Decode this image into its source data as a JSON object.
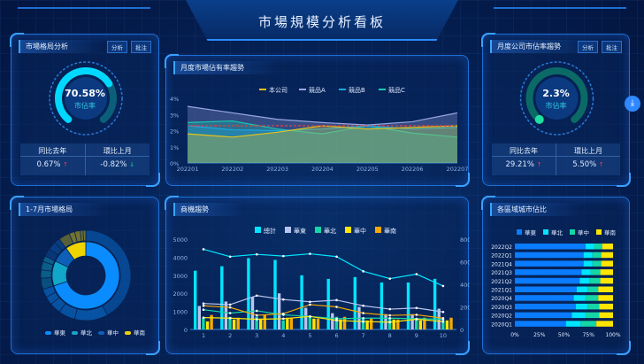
{
  "title": "市場規模分析看板",
  "colors": {
    "accent": "#2a8cff",
    "up": "#ff3a5a",
    "down": "#1ed39a"
  },
  "panels": {
    "market": {
      "title": "市場格局分析",
      "buttons": [
        "分析",
        "批注"
      ],
      "gauge": {
        "value": "70.58%",
        "label": "市佔率",
        "percent": 70.58
      },
      "stats": [
        {
          "label": "同比去年",
          "value": "0.67%",
          "trend": "up"
        },
        {
          "label": "環比上月",
          "value": "-0.82%",
          "trend": "down"
        }
      ]
    },
    "company": {
      "title": "月度公司市佔率趨勢",
      "buttons": [
        "分析",
        "批注"
      ],
      "gauge": {
        "value": "2.3%",
        "label": "市佔率",
        "percent": 2.3
      },
      "stats": [
        {
          "label": "同比去年",
          "value": "29.21%",
          "trend": "up"
        },
        {
          "label": "環比上月",
          "value": "5.50%",
          "trend": "up"
        }
      ]
    },
    "share_trend": {
      "title": "月度市場佔有率趨勢"
    },
    "pattern": {
      "title": "1-7月市場格局"
    },
    "opportunity": {
      "title": "商機趨勢"
    },
    "region": {
      "title": "各區域城市佔比"
    }
  },
  "download_icon": "download-icon",
  "chart_data": [
    {
      "id": "share_trend",
      "type": "area",
      "categories": [
        "202201",
        "202202",
        "202203",
        "202204",
        "202205",
        "202206",
        "202207"
      ],
      "ylim": [
        0,
        4
      ],
      "yticks": [
        "0%",
        "1%",
        "2%",
        "3%",
        "4%"
      ],
      "legend": "top",
      "series": [
        {
          "name": "本公司",
          "color": "#e6c21a",
          "values": [
            1.8,
            1.6,
            1.9,
            2.3,
            2.1,
            2.2,
            2.3
          ]
        },
        {
          "name": "競品A",
          "color": "#9aa6e0",
          "values": [
            3.5,
            3.1,
            2.7,
            2.5,
            2.35,
            2.55,
            3.1
          ]
        },
        {
          "name": "競品B",
          "color": "#1ea8e0",
          "values": [
            2.3,
            2.05,
            2.0,
            2.1,
            2.3,
            2.1,
            2.2
          ]
        },
        {
          "name": "競品C",
          "color": "#18c9b0",
          "values": [
            2.5,
            2.6,
            2.1,
            1.8,
            2.3,
            1.85,
            1.6
          ]
        }
      ],
      "average_line": {
        "value": 2.3,
        "color": "#e04040"
      }
    },
    {
      "id": "opportunity",
      "type": "bar",
      "categories": [
        "1",
        "2",
        "3",
        "4",
        "5",
        "6",
        "7",
        "8",
        "9",
        "10"
      ],
      "ylim": [
        0,
        5000
      ],
      "yticks": [
        "0",
        "1000",
        "2000",
        "3000",
        "4000",
        "5000"
      ],
      "y2lim": [
        0,
        800
      ],
      "y2ticks": [
        "0",
        "200",
        "400",
        "600",
        "800"
      ],
      "legend": "top",
      "series": [
        {
          "name": "總計",
          "color": "#00e5ff",
          "values": [
            3250,
            3500,
            3950,
            3850,
            3000,
            2800,
            2900,
            2600,
            2600,
            2800
          ],
          "line": [
            710,
            645,
            665,
            650,
            670,
            645,
            515,
            450,
            490,
            385
          ]
        },
        {
          "name": "華東",
          "color": "#b8c4f0",
          "values": [
            1300,
            1550,
            1800,
            2000,
            1200,
            900,
            1250,
            850,
            850,
            1150
          ],
          "line": [
            230,
            220,
            300,
            265,
            245,
            260,
            210,
            180,
            190,
            155
          ]
        },
        {
          "name": "華北",
          "color": "#14d6a6",
          "values": [
            650,
            700,
            700,
            500,
            700,
            700,
            600,
            600,
            550,
            500
          ],
          "line": [
            175,
            145,
            165,
            130,
            115,
            95,
            100,
            100,
            95,
            90
          ]
        },
        {
          "name": "華中",
          "color": "#ffe600",
          "values": [
            450,
            550,
            600,
            650,
            600,
            550,
            500,
            550,
            500,
            500
          ],
          "line": [
            105,
            100,
            90,
            95,
            115,
            80,
            70,
            65,
            90,
            70
          ]
        },
        {
          "name": "華南",
          "color": "#f5a800",
          "values": [
            800,
            650,
            800,
            650,
            600,
            700,
            600,
            550,
            650,
            650
          ],
          "line": [
            210,
            195,
            125,
            140,
            220,
            200,
            145,
            125,
            130,
            100
          ]
        }
      ]
    },
    {
      "id": "region",
      "type": "bar",
      "orientation": "horizontal",
      "stacked": true,
      "categories": [
        "2022Q2",
        "2022Q1",
        "2021Q4",
        "2021Q3",
        "2021Q2",
        "2021Q1",
        "2020Q4",
        "2020Q3",
        "2020Q2",
        "2020Q1"
      ],
      "xticks": [
        "0%",
        "25%",
        "50%",
        "75%",
        "100%"
      ],
      "legend": "top",
      "series": [
        {
          "name": "華東",
          "color": "#0a7cff",
          "values": [
            72,
            70,
            70,
            68,
            66,
            63,
            60,
            62,
            58,
            52
          ]
        },
        {
          "name": "華北",
          "color": "#00e5ff",
          "values": [
            9,
            9,
            9,
            9,
            10,
            11,
            12,
            12,
            14,
            15
          ]
        },
        {
          "name": "華中",
          "color": "#14d6a6",
          "values": [
            8,
            9,
            9,
            10,
            11,
            11,
            13,
            12,
            14,
            16
          ]
        },
        {
          "name": "華南",
          "color": "#ffe600",
          "values": [
            11,
            12,
            12,
            13,
            13,
            15,
            15,
            14,
            14,
            17
          ]
        }
      ]
    },
    {
      "id": "pattern",
      "type": "pie",
      "style": "sunburst",
      "legend": "bottom",
      "series": [
        {
          "name": "華東",
          "color": "#0a8cff",
          "value": 70,
          "children": [
            42,
            12,
            6,
            4,
            3,
            3
          ]
        },
        {
          "name": "華北",
          "color": "#12a6c8",
          "value": 12,
          "children": [
            4,
            3,
            3,
            2
          ]
        },
        {
          "name": "華中",
          "color": "#0d5fb8",
          "value": 8,
          "children": [
            3,
            3,
            2
          ]
        },
        {
          "name": "華南",
          "color": "#f0d400",
          "value": 10,
          "children": [
            4,
            2,
            2,
            1,
            1
          ]
        }
      ]
    }
  ]
}
